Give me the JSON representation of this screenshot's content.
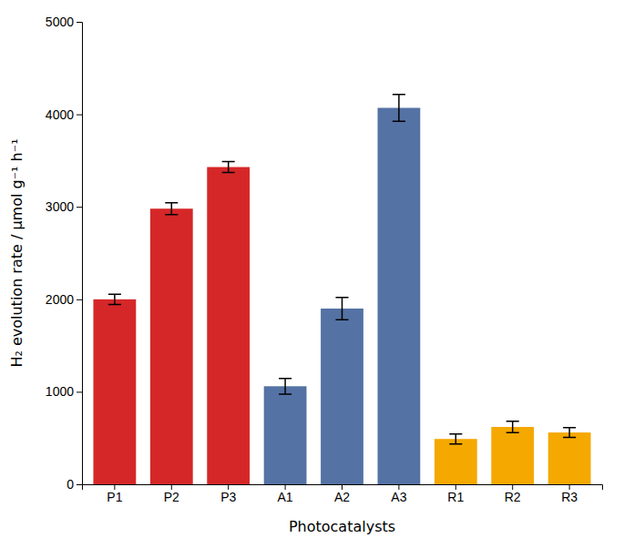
{
  "chart_data": {
    "type": "bar",
    "categories": [
      "P1",
      "P2",
      "P3",
      "A1",
      "A2",
      "A3",
      "R1",
      "R2",
      "R3"
    ],
    "values": [
      2000,
      2980,
      3430,
      1060,
      1900,
      4070,
      490,
      620,
      560
    ],
    "errors": [
      55,
      65,
      58,
      85,
      120,
      145,
      55,
      62,
      52
    ],
    "colors": [
      "#d62728",
      "#d62728",
      "#d62728",
      "#5472a4",
      "#5472a4",
      "#5472a4",
      "#f5a800",
      "#f5a800",
      "#f5a800"
    ],
    "xlabel": "Photocatalysts",
    "ylabel": "H₂ evolution rate / μmol g⁻¹ h⁻¹",
    "ylim": [
      0,
      5000
    ],
    "yticks": [
      0,
      1000,
      2000,
      3000,
      4000,
      5000
    ],
    "grid": false
  }
}
